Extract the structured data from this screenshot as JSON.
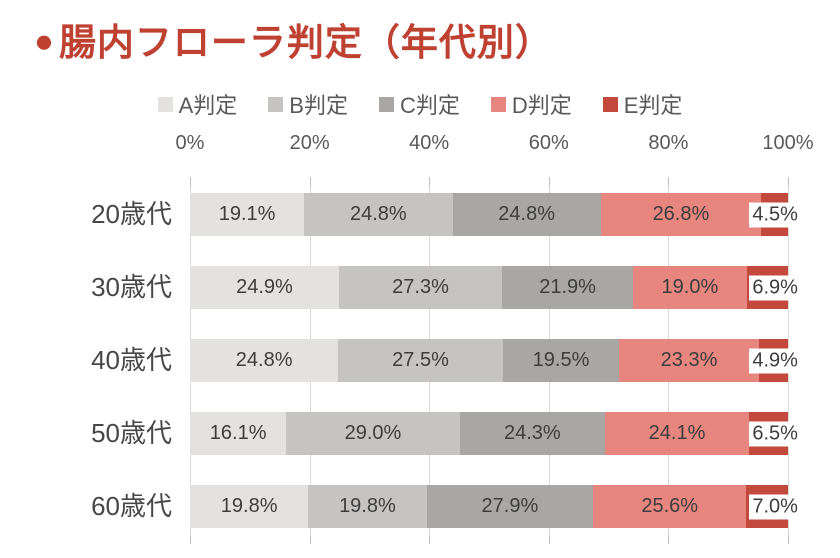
{
  "header": {
    "bullet": "●",
    "title": "腸内フローラ判定（年代別）",
    "title_color": "#bf4132"
  },
  "chart_data": {
    "type": "bar",
    "orientation": "horizontal",
    "stacked": true,
    "title": "腸内フローラ判定（年代別）",
    "categories": [
      "20歳代",
      "30歳代",
      "40歳代",
      "50歳代",
      "60歳代"
    ],
    "series": [
      {
        "name": "A判定",
        "color": "#e3e2e1",
        "values": [
          19.1,
          24.9,
          24.8,
          16.1,
          19.8
        ]
      },
      {
        "name": "B判定",
        "color": "#c5c4c3",
        "values": [
          24.8,
          27.3,
          27.5,
          29.0,
          19.8
        ]
      },
      {
        "name": "C判定",
        "color": "#a8a7a6",
        "values": [
          24.8,
          21.9,
          19.5,
          24.3,
          27.9
        ]
      },
      {
        "name": "D判定",
        "color": "#e6867e",
        "values": [
          26.8,
          19.0,
          23.3,
          24.1,
          25.6
        ]
      },
      {
        "name": "E判定",
        "color": "#c4493d",
        "values": [
          4.5,
          6.9,
          4.9,
          6.5,
          7.0
        ]
      }
    ],
    "value_suffix": "%",
    "value_decimals": 1,
    "x_ticks": [
      "0%",
      "20%",
      "40%",
      "60%",
      "80%",
      "100%"
    ],
    "xlim": [
      0,
      100
    ],
    "xlabel": "",
    "ylabel": "",
    "legend_position": "top",
    "grid": true,
    "colors": {
      "grid": "#d9d9d9",
      "tick_mark": "#bfbfbf",
      "axis_text": "#595959",
      "data_label_text": "#3d3d3d",
      "category_text": "#474747"
    }
  }
}
